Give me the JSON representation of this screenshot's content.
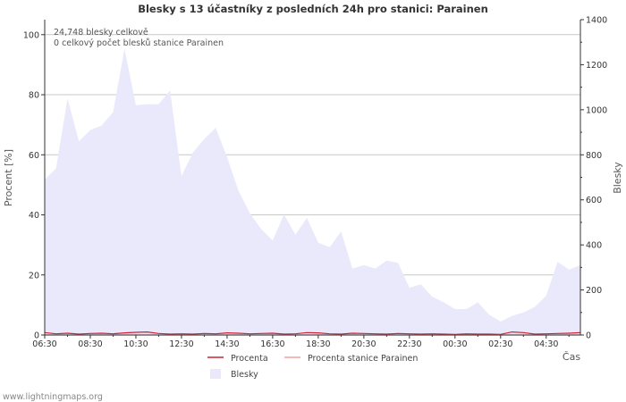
{
  "chart_data": {
    "type": "area",
    "title": "Blesky s 13 účastníky z posledních 24h pro stanici: Parainen",
    "annotations": [
      "24,748 blesky celkově",
      "0 celkový počet blesků stanice Parainen"
    ],
    "ylabel_left": "Procent   [%]",
    "ylabel_right": "Blesky",
    "xlabel": "Čas",
    "ylim_left": [
      0,
      105
    ],
    "ylim_right": [
      0,
      1400
    ],
    "yticks_left": [
      "0",
      "20",
      "40",
      "60",
      "80",
      "100"
    ],
    "yticks_right": [
      "0",
      "200",
      "400",
      "600",
      "800",
      "1000",
      "1200",
      "1400"
    ],
    "xticks": [
      "06:30",
      "08:30",
      "10:30",
      "12:30",
      "14:30",
      "16:30",
      "18:30",
      "20:30",
      "22:30",
      "00:30",
      "02:30",
      "04:30"
    ],
    "x_range_hours": [
      0,
      23.5
    ],
    "series": [
      {
        "name": "Blesky",
        "type": "area",
        "axis": "right",
        "color": "#e9e9fb",
        "x": [
          0.0,
          0.5,
          1.0,
          1.5,
          2.0,
          2.5,
          3.0,
          3.5,
          4.0,
          4.5,
          5.0,
          5.5,
          6.0,
          6.5,
          7.0,
          7.5,
          8.0,
          8.5,
          9.0,
          9.5,
          10.0,
          10.5,
          11.0,
          11.5,
          12.0,
          12.5,
          13.0,
          13.5,
          14.0,
          14.5,
          15.0,
          15.5,
          16.0,
          16.5,
          17.0,
          17.5,
          18.0,
          18.5,
          19.0,
          19.5,
          20.0,
          20.5,
          21.0,
          21.5,
          22.0,
          22.5,
          23.0,
          23.5
        ],
        "values": [
          690,
          740,
          1050,
          860,
          910,
          930,
          990,
          1270,
          1020,
          1025,
          1025,
          1085,
          705,
          810,
          870,
          920,
          790,
          640,
          540,
          470,
          420,
          535,
          445,
          520,
          410,
          390,
          460,
          295,
          310,
          295,
          330,
          320,
          210,
          225,
          170,
          145,
          115,
          115,
          145,
          90,
          60,
          85,
          100,
          125,
          175,
          325,
          290,
          310
        ]
      },
      {
        "name": "Procenta",
        "type": "line",
        "axis": "left",
        "color": "#cc2233",
        "x": [
          0.0,
          0.5,
          1.0,
          1.5,
          2.0,
          2.5,
          3.0,
          3.5,
          4.0,
          4.5,
          5.0,
          5.5,
          6.0,
          6.5,
          7.0,
          7.5,
          8.0,
          8.5,
          9.0,
          9.5,
          10.0,
          10.5,
          11.0,
          11.5,
          12.0,
          12.5,
          13.0,
          13.5,
          14.0,
          14.5,
          15.0,
          15.5,
          16.0,
          16.5,
          17.0,
          17.5,
          18.0,
          18.5,
          19.0,
          19.5,
          20.0,
          20.5,
          21.0,
          21.5,
          22.0,
          22.5,
          23.0,
          23.5
        ],
        "values": [
          0.8,
          0.4,
          0.6,
          0.3,
          0.5,
          0.6,
          0.4,
          0.7,
          0.9,
          1.0,
          0.5,
          0.3,
          0.4,
          0.3,
          0.5,
          0.4,
          0.7,
          0.6,
          0.4,
          0.5,
          0.6,
          0.3,
          0.4,
          0.8,
          0.7,
          0.4,
          0.3,
          0.6,
          0.5,
          0.4,
          0.3,
          0.5,
          0.4,
          0.3,
          0.4,
          0.3,
          0.2,
          0.4,
          0.3,
          0.3,
          0.2,
          1.0,
          0.8,
          0.3,
          0.4,
          0.5,
          0.6,
          0.8
        ]
      },
      {
        "name": "Procenta stanice Parainen",
        "type": "line",
        "axis": "left",
        "color": "#f0a0a0",
        "x": [
          0.0,
          23.5
        ],
        "values": [
          0,
          0
        ]
      }
    ],
    "legend": [
      "Procenta",
      "Procenta stanice Parainen",
      "Blesky"
    ],
    "grid": true
  },
  "footer": {
    "source": "www.lightningmaps.org"
  }
}
